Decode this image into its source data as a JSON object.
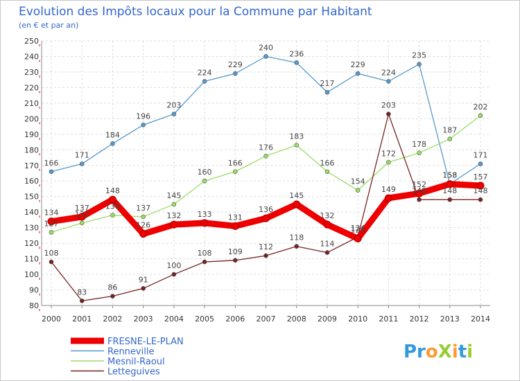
{
  "chart_data": {
    "type": "line",
    "title": "Evolution des Impôts locaux pour la Commune par Habitant",
    "subtitle": "(en € et par an)",
    "x": [
      "2000",
      "2001",
      "2002",
      "2003",
      "2004",
      "2005",
      "2006",
      "2007",
      "2008",
      "2009",
      "2010",
      "2011",
      "2012",
      "2013",
      "2014"
    ],
    "ylim": [
      80,
      250
    ],
    "yticks": [
      80,
      90,
      100,
      110,
      120,
      130,
      140,
      150,
      160,
      170,
      180,
      190,
      200,
      210,
      220,
      230,
      240,
      250
    ],
    "grid": true,
    "legend_position": "bottom-left",
    "series": [
      {
        "name": "FRESNE-LE-PLAN",
        "color": "#ee0000",
        "values": [
          134,
          137,
          148,
          126,
          132,
          133,
          131,
          136,
          145,
          132,
          123,
          149,
          152,
          158,
          157
        ]
      },
      {
        "name": "Renneville",
        "color": "#5599cc",
        "values": [
          166,
          171,
          184,
          196,
          203,
          224,
          229,
          240,
          236,
          217,
          229,
          224,
          235,
          158,
          171
        ]
      },
      {
        "name": "Mesnil-Raoul",
        "color": "#99dd66",
        "values": [
          127,
          133,
          138,
          137,
          145,
          160,
          166,
          176,
          183,
          166,
          154,
          172,
          178,
          187,
          202
        ]
      },
      {
        "name": "Letteguives",
        "color": "#772222",
        "values": [
          108,
          83,
          86,
          91,
          100,
          108,
          109,
          112,
          118,
          114,
          124,
          203,
          148,
          148,
          148
        ]
      }
    ]
  },
  "logo": {
    "text": "ProXiti"
  }
}
